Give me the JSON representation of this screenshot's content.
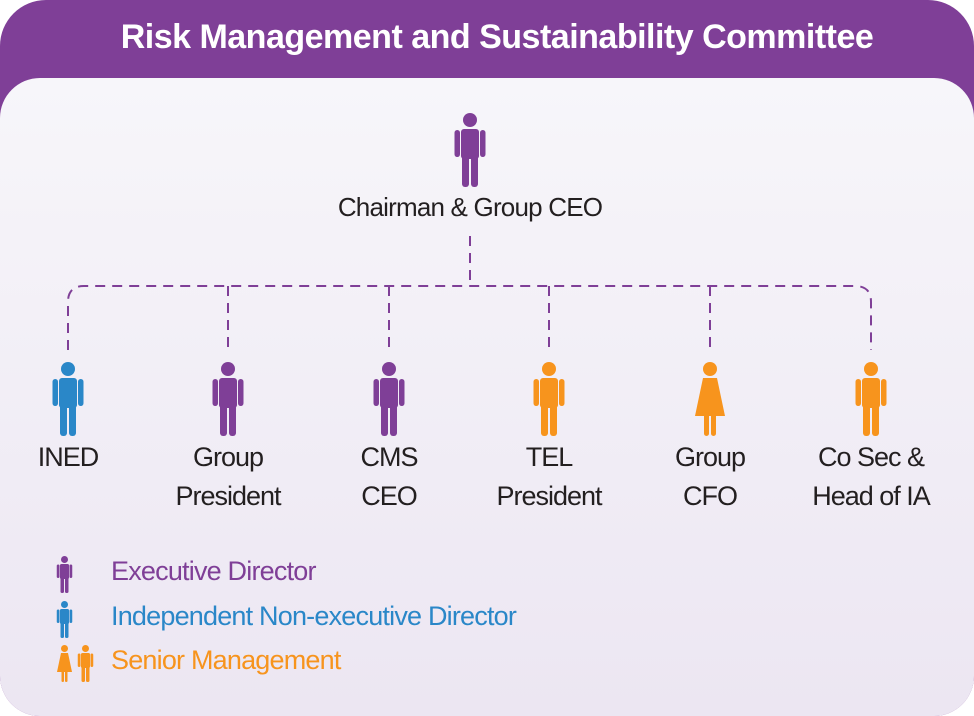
{
  "title": "Risk Management and Sustainability Committee",
  "colors": {
    "executive": "#7f3f97",
    "independent": "#2a87c8",
    "senior": "#f7941d",
    "header": "#7f3f97"
  },
  "top": {
    "label": "Chairman & Group CEO",
    "icon": "man-icon",
    "role": "executive"
  },
  "members": [
    {
      "line1": "INED",
      "line2": "",
      "icon": "man-icon",
      "role": "independent"
    },
    {
      "line1": "Group",
      "line2": "President",
      "icon": "man-icon",
      "role": "executive"
    },
    {
      "line1": "CMS",
      "line2": "CEO",
      "icon": "man-icon",
      "role": "executive"
    },
    {
      "line1": "TEL",
      "line2": "President",
      "icon": "man-icon",
      "role": "senior"
    },
    {
      "line1": "Group",
      "line2": "CFO",
      "icon": "woman-icon",
      "role": "senior"
    },
    {
      "line1": "Co Sec &",
      "line2": "Head of IA",
      "icon": "man-icon",
      "role": "senior"
    }
  ],
  "legend": [
    {
      "label": "Executive Director",
      "role": "executive"
    },
    {
      "label": "Independent Non-executive Director",
      "role": "independent"
    },
    {
      "label": "Senior Management",
      "role": "senior"
    }
  ]
}
